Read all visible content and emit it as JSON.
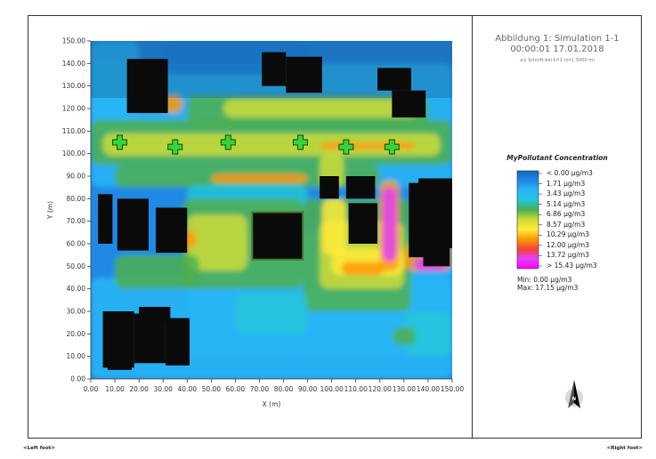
{
  "header": {
    "title_line1": "Abbildung 1: Simulation 1-1",
    "title_line2": "00:00:01 17.01.2018",
    "title_line3": "x/y Schnitt bei k=1 (z=1 5000 m)"
  },
  "legend": {
    "title": "MyPollutant Concentration",
    "entries": [
      "< 0.00 µg/m3",
      "1.71  µg/m3",
      "3.43  µg/m3",
      "5.14  µg/m3",
      "6.86  µg/m3",
      "8.57  µg/m3",
      "10.29  µg/m3",
      "12.00  µg/m3",
      "13.72  µg/m3",
      "> 15.43 µg/m3"
    ],
    "colors": [
      "#1565c0",
      "#1e88e5",
      "#29b6f6",
      "#26c6da",
      "#4caf50",
      "#cddc39",
      "#ffeb3b",
      "#ff9800",
      "#f44336",
      "#e040fb",
      "#ff00ff"
    ],
    "min_label": "Min: 0.00 µg/m3",
    "max_label": "Max: 17.15 µg/m3"
  },
  "footer": {
    "left": "<Left foot>",
    "right": "<Right foot>"
  },
  "compass": {
    "label": "N"
  },
  "chart_data": {
    "type": "heatmap",
    "xlabel": "X (m)",
    "ylabel": "Y (m)",
    "xlim": [
      0,
      150
    ],
    "ylim": [
      0,
      150
    ],
    "xticks": [
      "0.00",
      "10.00",
      "20.00",
      "30.00",
      "40.00",
      "50.00",
      "60.00",
      "70.00",
      "80.00",
      "90.00",
      "100.00",
      "110.00",
      "120.00",
      "130.00",
      "140.00",
      "150.00"
    ],
    "yticks": [
      "0.00",
      "10.00",
      "20.00",
      "30.00",
      "40.00",
      "50.00",
      "60.00",
      "70.00",
      "80.00",
      "90.00",
      "100.00",
      "110.00",
      "120.00",
      "130.00",
      "140.00",
      "150.00"
    ],
    "value_range": [
      0.0,
      17.15
    ],
    "sources": [
      {
        "x": 12,
        "y": 105
      },
      {
        "x": 35,
        "y": 103
      },
      {
        "x": 57,
        "y": 105
      },
      {
        "x": 87,
        "y": 105
      },
      {
        "x": 106,
        "y": 103
      },
      {
        "x": 125,
        "y": 103
      }
    ],
    "buildings": [
      {
        "x0": 15,
        "y0": 118,
        "x1": 32,
        "y1": 142
      },
      {
        "x0": 71,
        "y0": 130,
        "x1": 81,
        "y1": 145
      },
      {
        "x0": 81,
        "y0": 127,
        "x1": 96,
        "y1": 143
      },
      {
        "x0": 119,
        "y0": 128,
        "x1": 133,
        "y1": 138
      },
      {
        "x0": 125,
        "y0": 116,
        "x1": 139,
        "y1": 128
      },
      {
        "x0": 95,
        "y0": 80,
        "x1": 103,
        "y1": 90
      },
      {
        "x0": 106,
        "y0": 80,
        "x1": 118,
        "y1": 90
      },
      {
        "x0": 107,
        "y0": 60,
        "x1": 119,
        "y1": 78
      },
      {
        "x0": 136,
        "y0": 58,
        "x1": 151,
        "y1": 89
      },
      {
        "x0": 132,
        "y0": 54,
        "x1": 148,
        "y1": 87
      },
      {
        "x0": 138,
        "y0": 50,
        "x1": 149,
        "y1": 58
      },
      {
        "x0": 3,
        "y0": 60,
        "x1": 9,
        "y1": 82
      },
      {
        "x0": 11,
        "y0": 57,
        "x1": 24,
        "y1": 80
      },
      {
        "x0": 27,
        "y0": 56,
        "x1": 40,
        "y1": 76
      },
      {
        "x0": 69,
        "y0": 55,
        "x1": 86,
        "y1": 72
      },
      {
        "x0": 5,
        "y0": 5,
        "x1": 18,
        "y1": 30
      },
      {
        "x0": 7,
        "y0": 4,
        "x1": 17,
        "y1": 8
      },
      {
        "x0": 18,
        "y0": 7,
        "x1": 31,
        "y1": 29
      },
      {
        "x0": 20,
        "y0": 25,
        "x1": 33,
        "y1": 32
      },
      {
        "x0": 31,
        "y0": 6,
        "x1": 41,
        "y1": 27
      }
    ],
    "outlined_building": {
      "x0": 67,
      "y0": 53,
      "x1": 88,
      "y1": 74
    }
  }
}
